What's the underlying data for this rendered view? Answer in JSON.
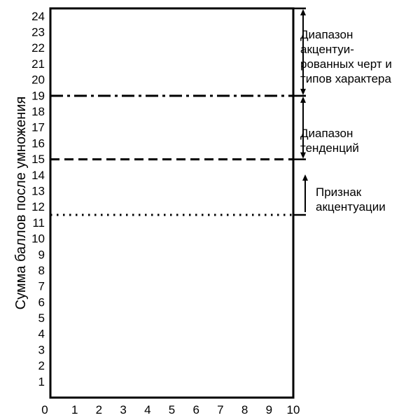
{
  "chart_data": {
    "type": "line",
    "title": "",
    "xlabel": "",
    "ylabel": "Сумма баллов после умножения",
    "xlim": [
      0,
      10
    ],
    "ylim": [
      0,
      24.5
    ],
    "x_ticks": [
      "0",
      "1",
      "2",
      "3",
      "4",
      "5",
      "6",
      "7",
      "8",
      "9",
      "10"
    ],
    "y_ticks": [
      "1",
      "2",
      "3",
      "4",
      "5",
      "6",
      "7",
      "8",
      "9",
      "10",
      "11",
      "12",
      "13",
      "14",
      "15",
      "16",
      "17",
      "18",
      "19",
      "20",
      "21",
      "22",
      "23",
      "24"
    ],
    "grid": false,
    "legend": "none",
    "threshold_lines": [
      {
        "y": 19,
        "style": "dash-dot"
      },
      {
        "y": 15,
        "style": "dashed"
      },
      {
        "y": 11.5,
        "style": "dotted"
      }
    ],
    "ranges": [
      {
        "from": 19,
        "to": 24.5,
        "label_lines": [
          "Диапазон",
          "акцентуи-",
          "рованных черт и",
          "типов характера"
        ]
      },
      {
        "from": 15,
        "to": 19,
        "label_lines": [
          "Диапазон",
          "тенденций"
        ]
      },
      {
        "from": 11.5,
        "to": 15,
        "label_lines": [
          "Признак",
          "акцентуации"
        ]
      }
    ],
    "colors": {
      "ink": "#000000",
      "background": "#ffffff"
    }
  }
}
